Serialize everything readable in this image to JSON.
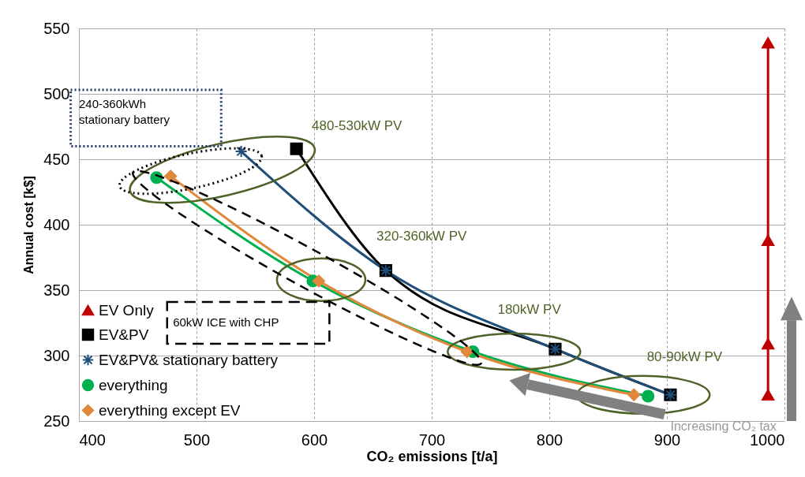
{
  "chart_data": {
    "type": "line",
    "xlabel": "CO₂ emissions [t/a]",
    "ylabel": "Annual cost [k$]",
    "xlim": [
      400,
      1000
    ],
    "xticks": [
      400,
      500,
      600,
      700,
      800,
      900,
      1000
    ],
    "ylim": [
      250,
      550
    ],
    "yticks": [
      250,
      300,
      350,
      400,
      450,
      500,
      550
    ],
    "grid": true,
    "legend": "bottom left",
    "line_style": "solid",
    "series": [
      {
        "name": "EV Only",
        "color": "#c00000",
        "marker": "triangle",
        "x": [
          986,
          986,
          986,
          986
        ],
        "values": [
          270,
          309,
          388,
          539
        ]
      },
      {
        "name": "EV&PV",
        "color": "#000000",
        "marker": "square",
        "x": [
          585,
          661,
          805,
          903
        ],
        "values": [
          458,
          365,
          305,
          270
        ]
      },
      {
        "name": "EV&PV& stationary battery",
        "color": "#1f4e79",
        "marker": "cross",
        "x": [
          538,
          661,
          805,
          903
        ],
        "values": [
          456,
          365,
          305,
          270
        ]
      },
      {
        "name": "everything",
        "color": "#00b050",
        "marker": "circle",
        "x": [
          466,
          599,
          735,
          884
        ],
        "values": [
          436,
          357,
          303,
          269
        ]
      },
      {
        "name": "everything except EV",
        "color": "#e0883c",
        "marker": "diamond",
        "x": [
          478,
          604,
          730,
          872
        ],
        "values": [
          437,
          357,
          303,
          270
        ]
      }
    ],
    "annotations": [
      "240-360kWh stationary battery",
      "480-530kW PV",
      "320-360kW PV",
      "180kW PV",
      "80-90kW PV",
      "60kW ICE with CHP",
      "Increasing CO₂ tax"
    ]
  }
}
